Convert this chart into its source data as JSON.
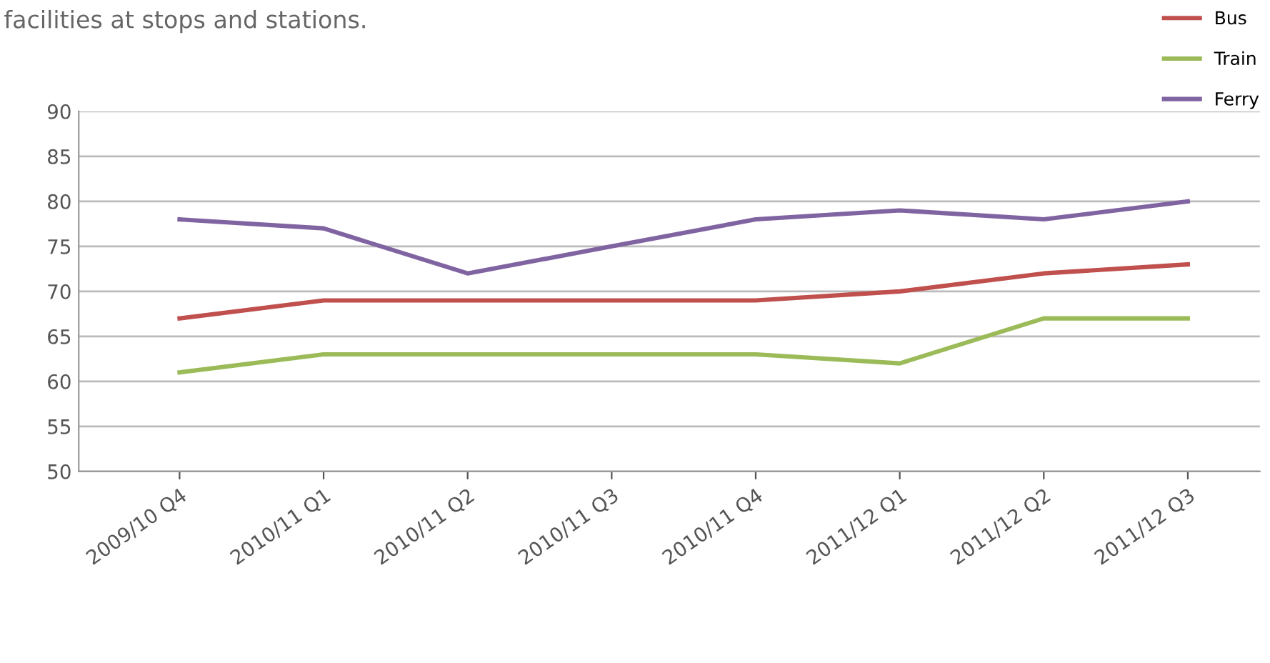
{
  "chart_data": {
    "type": "line",
    "annotations": [
      "facilities at stops and stations."
    ],
    "categories": [
      "2009/10 Q4",
      "2010/11 Q1",
      "2010/11 Q2",
      "2010/11 Q3",
      "2010/11 Q4",
      "2011/12 Q1",
      "2011/12 Q2",
      "2011/12 Q3"
    ],
    "series": [
      {
        "name": "Bus",
        "color": "#c0504d",
        "values": [
          67,
          69,
          69,
          69,
          69,
          70,
          72,
          73
        ]
      },
      {
        "name": "Train",
        "color": "#9bbb59",
        "values": [
          61,
          63,
          63,
          63,
          63,
          62,
          67,
          67
        ]
      },
      {
        "name": "Ferry",
        "color": "#8064a2",
        "values": [
          78,
          77,
          72,
          75,
          78,
          79,
          78,
          80
        ]
      }
    ],
    "ylim": [
      50,
      90
    ],
    "yticks": [
      50,
      55,
      60,
      65,
      70,
      75,
      80,
      85,
      90
    ],
    "grid": "y",
    "legend": "top right",
    "marker": "none",
    "line_style": "solid"
  }
}
